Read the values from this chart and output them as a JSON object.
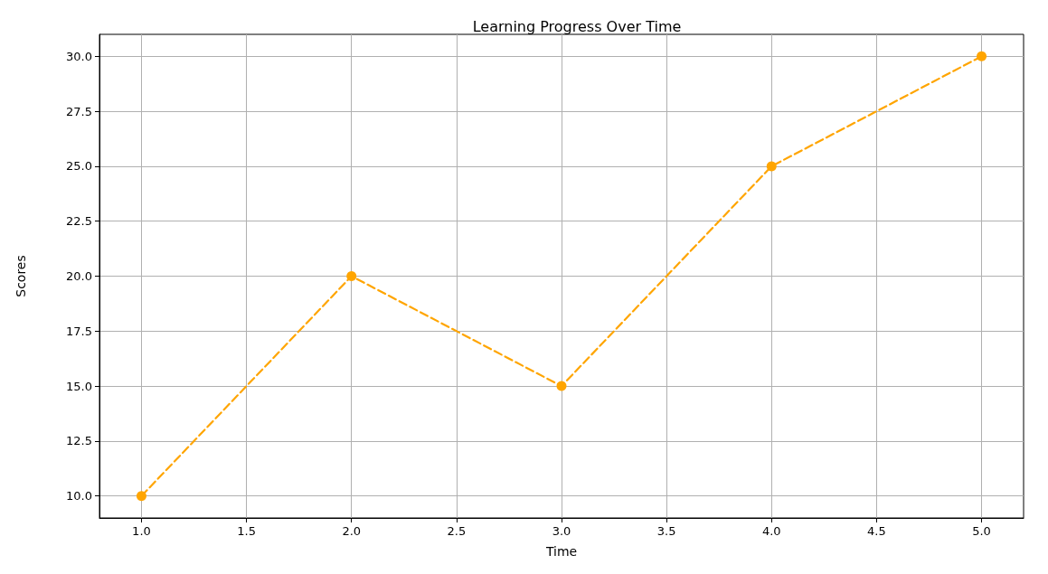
{
  "chart_data": {
    "type": "line",
    "title": "Learning Progress Over Time",
    "xlabel": "Time",
    "ylabel": "Scores",
    "x": [
      1,
      2,
      3,
      4,
      5
    ],
    "series": [
      {
        "color": "#ffa500",
        "values": [
          10,
          20,
          15,
          25,
          30
        ]
      }
    ],
    "xlim": [
      0.8,
      5.2
    ],
    "xticks": [
      {
        "value": 1,
        "label": "1.0"
      },
      {
        "value": 1.5,
        "label": "1.5"
      },
      {
        "value": 2,
        "label": "2.0"
      },
      {
        "value": 2.5,
        "label": "2.5"
      },
      {
        "value": 3,
        "label": "3.0"
      },
      {
        "value": 3.5,
        "label": "3.5"
      },
      {
        "value": 4,
        "label": "4.0"
      },
      {
        "value": 4.5,
        "label": "4.5"
      },
      {
        "value": 5,
        "label": "5.0"
      }
    ],
    "ylim": [
      9,
      31
    ],
    "yticks": [
      {
        "value": 10,
        "label": "10.0"
      },
      {
        "value": 12.5,
        "label": "12.5"
      },
      {
        "value": 15,
        "label": "15.0"
      },
      {
        "value": 17.5,
        "label": "17.5"
      },
      {
        "value": 20,
        "label": "20.0"
      },
      {
        "value": 22.5,
        "label": "22.5"
      },
      {
        "value": 25,
        "label": "25.0"
      },
      {
        "value": 27.5,
        "label": "27.5"
      },
      {
        "value": 30,
        "label": "30.0"
      }
    ],
    "grid": true,
    "marker": "circle",
    "line_style": "dashed"
  }
}
